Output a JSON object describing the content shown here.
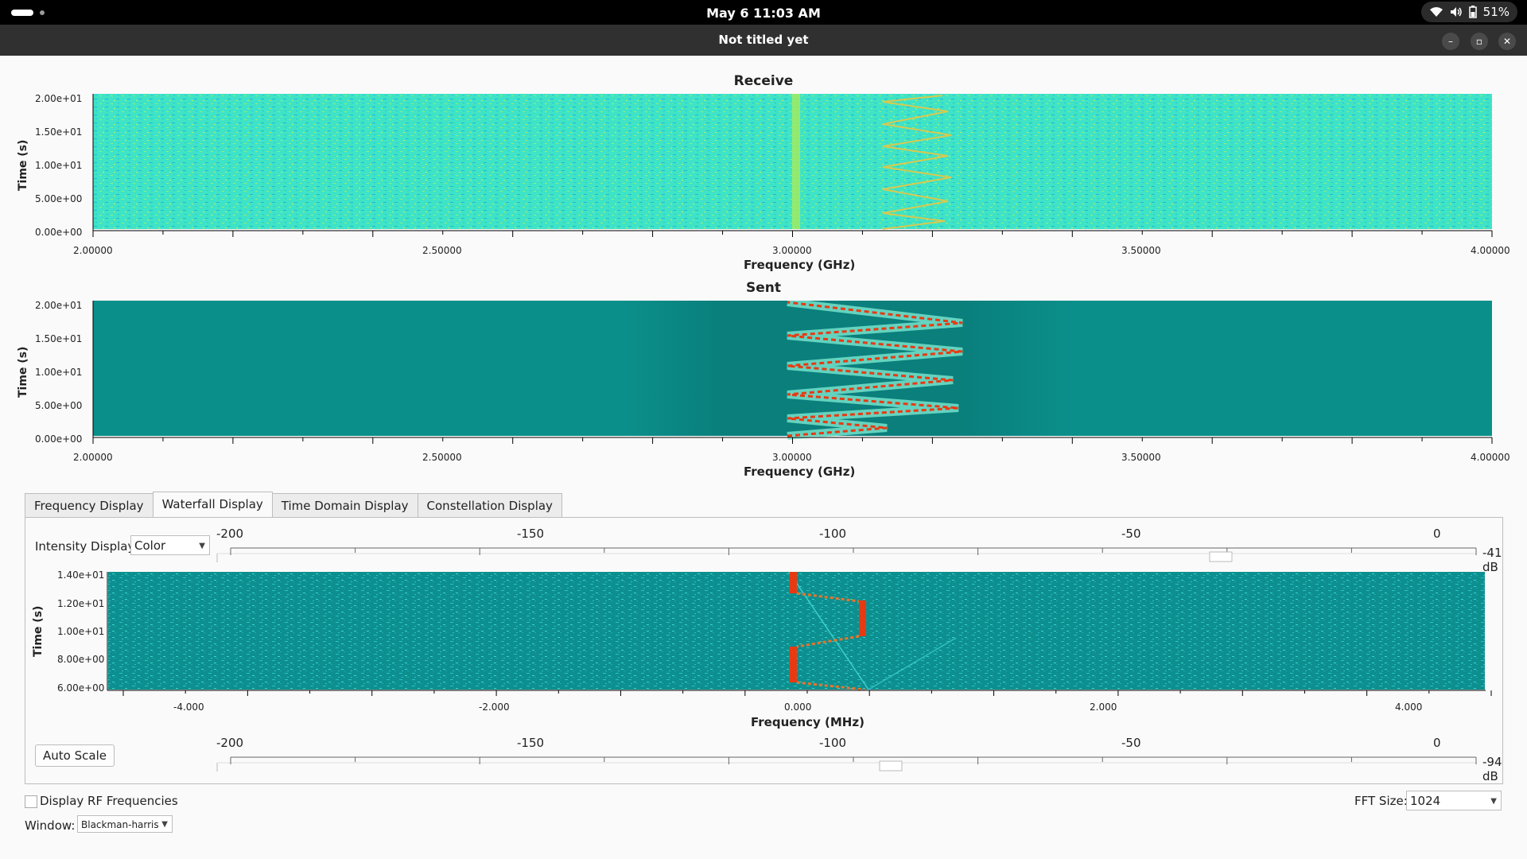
{
  "topbar": {
    "clock": "May 6  11:03 AM",
    "battery": "51%"
  },
  "window": {
    "title": "Not titled yet"
  },
  "receive_plot": {
    "title": "Receive",
    "ylabel": "Time (s)",
    "xlabel": "Frequency (GHz)",
    "yticks": [
      "2.00e+01",
      "1.50e+01",
      "1.00e+01",
      "5.00e+00",
      "0.00e+00"
    ],
    "xticks": [
      "2.00000",
      "2.50000",
      "3.00000",
      "3.50000",
      "4.00000"
    ]
  },
  "sent_plot": {
    "title": "Sent",
    "ylabel": "Time (s)",
    "xlabel": "Frequency (GHz)",
    "yticks": [
      "2.00e+01",
      "1.50e+01",
      "1.00e+01",
      "5.00e+00",
      "0.00e+00"
    ],
    "xticks": [
      "2.00000",
      "2.50000",
      "3.00000",
      "3.50000",
      "4.00000"
    ]
  },
  "tabs": [
    {
      "label": "Frequency Display"
    },
    {
      "label": "Waterfall Display"
    },
    {
      "label": "Time Domain Display"
    },
    {
      "label": "Constellation Display"
    }
  ],
  "waterfall_panel": {
    "intensity_label": "Intensity Display:",
    "intensity_value": "Color",
    "max_scale": {
      "ticks": [
        "-200",
        "-150",
        "-100",
        "-50",
        "0"
      ],
      "value": "-41 dB",
      "level_db": -41
    },
    "min_scale": {
      "ticks": [
        "-200",
        "-150",
        "-100",
        "-50",
        "0"
      ],
      "value": "-94 dB",
      "level_db": -94
    },
    "auto_scale_label": "Auto Scale",
    "plot": {
      "ylabel": "Time (s)",
      "xlabel": "Frequency (MHz)",
      "yticks": [
        "1.40e+01",
        "1.20e+01",
        "1.00e+01",
        "8.00e+00",
        "6.00e+00"
      ],
      "xticks": [
        "-4.000",
        "-2.000",
        "0.000",
        "2.000",
        "4.000"
      ]
    }
  },
  "bottom": {
    "rf_checkbox_label": "Display RF Frequencies",
    "rf_checked": false,
    "window_label": "Window:",
    "window_value": "Blackman-harris",
    "fft_label": "FFT Size:",
    "fft_value": "1024"
  },
  "colors": {
    "waterfall_bg": "#0e8f8f",
    "receive_bg": "#3ee6c0",
    "signal": "#e83a12"
  }
}
